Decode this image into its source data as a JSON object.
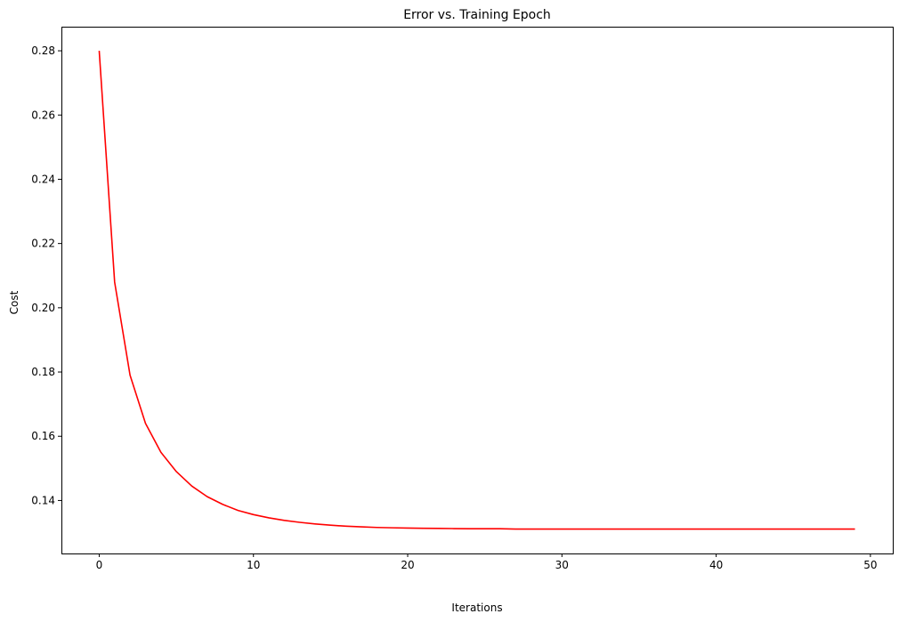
{
  "chart_data": {
    "type": "line",
    "title": "Error vs. Training Epoch",
    "xlabel": "Iterations",
    "ylabel": "Cost",
    "xlim": [
      -2.45,
      51.45
    ],
    "ylim": [
      0.1235,
      0.2875
    ],
    "xticks": [
      0,
      10,
      20,
      30,
      40,
      50
    ],
    "xtick_labels": [
      "0",
      "10",
      "20",
      "30",
      "40",
      "50"
    ],
    "yticks": [
      0.14,
      0.16,
      0.18,
      0.2,
      0.22,
      0.24,
      0.26,
      0.28
    ],
    "ytick_labels": [
      "0.14",
      "0.16",
      "0.18",
      "0.20",
      "0.22",
      "0.24",
      "0.26",
      "0.28"
    ],
    "grid": false,
    "series": [
      {
        "color": "#ff0000",
        "x": [
          0,
          1,
          2,
          3,
          4,
          5,
          6,
          7,
          8,
          9,
          10,
          11,
          12,
          13,
          14,
          15,
          16,
          17,
          18,
          19,
          20,
          21,
          22,
          23,
          24,
          25,
          26,
          27,
          28,
          29,
          30,
          31,
          32,
          33,
          34,
          35,
          36,
          37,
          38,
          39,
          40,
          41,
          42,
          43,
          44,
          45,
          46,
          47,
          48,
          49
        ],
        "y": [
          0.28,
          0.208,
          0.179,
          0.164,
          0.155,
          0.149,
          0.1445,
          0.1412,
          0.1388,
          0.1369,
          0.1356,
          0.1346,
          0.1338,
          0.1332,
          0.1327,
          0.1323,
          0.132,
          0.1318,
          0.1316,
          0.1315,
          0.1314,
          0.13135,
          0.1313,
          0.13125,
          0.1312,
          0.1312,
          0.1312,
          0.1311,
          0.1311,
          0.1311,
          0.1311,
          0.1311,
          0.1311,
          0.1311,
          0.1311,
          0.1311,
          0.1311,
          0.1311,
          0.1311,
          0.1311,
          0.1311,
          0.1311,
          0.1311,
          0.1311,
          0.1311,
          0.1311,
          0.1311,
          0.1311,
          0.1311,
          0.1311
        ]
      }
    ]
  }
}
